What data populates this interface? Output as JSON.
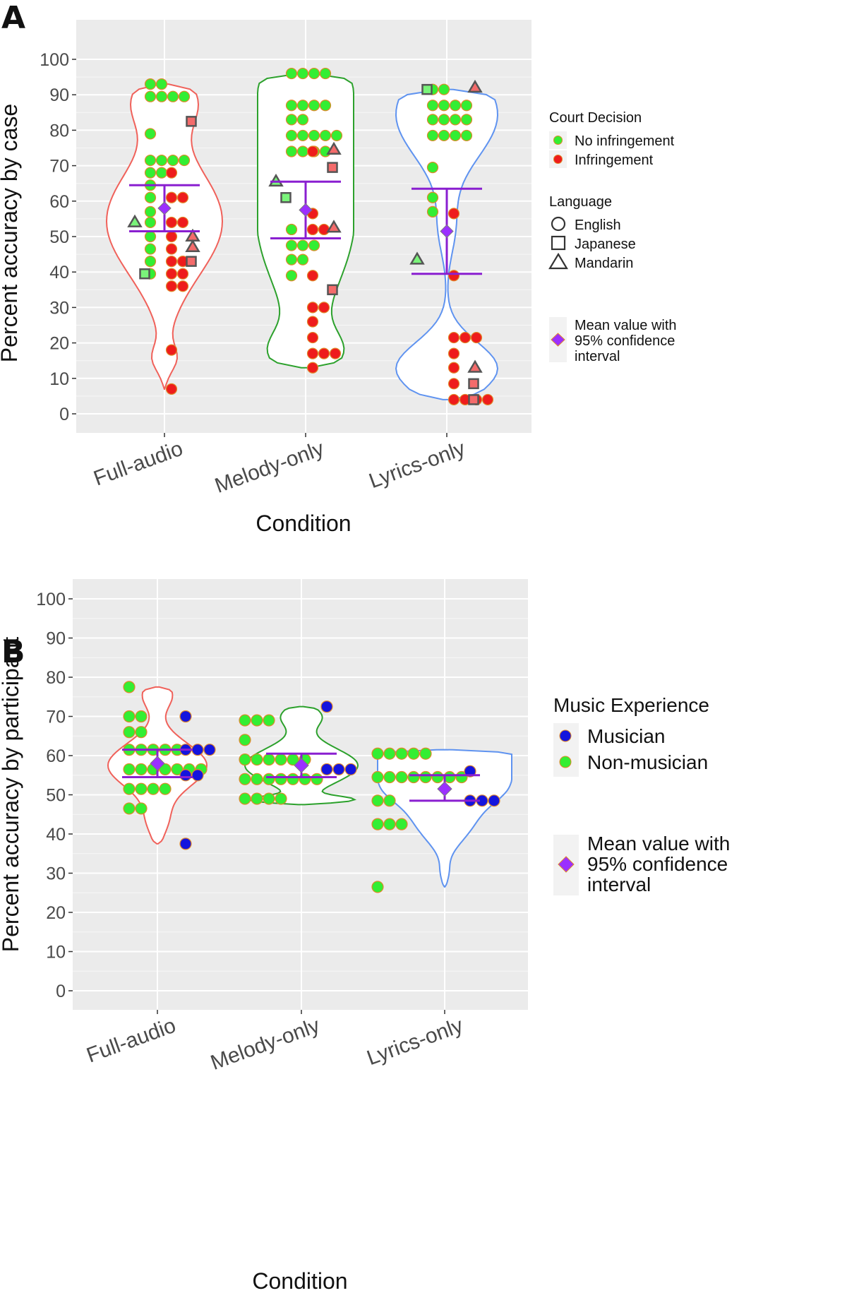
{
  "chart_data": [
    {
      "panel": "A",
      "type": "violin",
      "xlabel": "Condition",
      "ylabel": "Percent accuracy by case",
      "ylim": [
        0,
        100
      ],
      "yticks": [
        "0",
        "10",
        "20",
        "30",
        "40",
        "50",
        "60",
        "70",
        "80",
        "90",
        "100"
      ],
      "categories": [
        "Full-audio",
        "Melody-only",
        "Lyrics-only"
      ],
      "grid": true,
      "legend_position": "right",
      "legend": {
        "court_title": "Court Decision",
        "no_infringement": "No infringement",
        "infringement": "Infringement",
        "language_title": "Language",
        "english": "English",
        "japanese": "Japanese",
        "mandarin": "Mandarin",
        "mean_l1": "Mean value with",
        "mean_l2": "95% confidence",
        "mean_l3": "interval"
      },
      "colors": {
        "panel_bg": "#ebebeb",
        "grid": "#ffffff",
        "no_infringement": "#33ee33",
        "infringement": "#ee1c1c",
        "outline_full": "#f0615a",
        "outline_melody": "#2ca12c",
        "outline_lyrics": "#5f93f0",
        "mean": "#9b30ff",
        "ci": "#8a1fd0"
      },
      "summary": [
        {
          "category": "Full-audio",
          "mean": 58,
          "ci_low": 51.5,
          "ci_high": 64.5
        },
        {
          "category": "Melody-only",
          "mean": 57.5,
          "ci_low": 49.5,
          "ci_high": 65.5
        },
        {
          "category": "Lyrics-only",
          "mean": 51.5,
          "ci_low": 39.5,
          "ci_high": 63.5
        }
      ],
      "violin_range": [
        {
          "category": "Full-audio",
          "min": 7,
          "max": 93
        },
        {
          "category": "Melody-only",
          "min": 13,
          "max": 96
        },
        {
          "category": "Lyrics-only",
          "min": 4,
          "max": 91.5
        }
      ],
      "series": [
        {
          "group": "No infringement",
          "shape": "circle",
          "points": [
            [
              "Full-audio",
              93
            ],
            [
              "Full-audio",
              93
            ],
            [
              "Full-audio",
              89.5
            ],
            [
              "Full-audio",
              89.5
            ],
            [
              "Full-audio",
              89.5
            ],
            [
              "Full-audio",
              89.5
            ],
            [
              "Full-audio",
              79
            ],
            [
              "Full-audio",
              71.5
            ],
            [
              "Full-audio",
              71.5
            ],
            [
              "Full-audio",
              71.5
            ],
            [
              "Full-audio",
              71.5
            ],
            [
              "Full-audio",
              68
            ],
            [
              "Full-audio",
              68
            ],
            [
              "Full-audio",
              64.5
            ],
            [
              "Full-audio",
              61
            ],
            [
              "Full-audio",
              57
            ],
            [
              "Full-audio",
              54
            ],
            [
              "Full-audio",
              50
            ],
            [
              "Full-audio",
              46.5
            ],
            [
              "Full-audio",
              43
            ],
            [
              "Full-audio",
              39.5
            ],
            [
              "Melody-only",
              96
            ],
            [
              "Melody-only",
              96
            ],
            [
              "Melody-only",
              96
            ],
            [
              "Melody-only",
              96
            ],
            [
              "Melody-only",
              87
            ],
            [
              "Melody-only",
              87
            ],
            [
              "Melody-only",
              87
            ],
            [
              "Melody-only",
              87
            ],
            [
              "Melody-only",
              83
            ],
            [
              "Melody-only",
              83
            ],
            [
              "Melody-only",
              78.5
            ],
            [
              "Melody-only",
              78.5
            ],
            [
              "Melody-only",
              78.5
            ],
            [
              "Melody-only",
              78.5
            ],
            [
              "Melody-only",
              78.5
            ],
            [
              "Melody-only",
              74
            ],
            [
              "Melody-only",
              74
            ],
            [
              "Melody-only",
              74
            ],
            [
              "Melody-only",
              74
            ],
            [
              "Melody-only",
              52
            ],
            [
              "Melody-only",
              47.5
            ],
            [
              "Melody-only",
              47.5
            ],
            [
              "Melody-only",
              47.5
            ],
            [
              "Melody-only",
              43.5
            ],
            [
              "Melody-only",
              43.5
            ],
            [
              "Melody-only",
              39
            ],
            [
              "Lyrics-only",
              91.5
            ],
            [
              "Lyrics-only",
              91.5
            ],
            [
              "Lyrics-only",
              87
            ],
            [
              "Lyrics-only",
              87
            ],
            [
              "Lyrics-only",
              87
            ],
            [
              "Lyrics-only",
              87
            ],
            [
              "Lyrics-only",
              83
            ],
            [
              "Lyrics-only",
              83
            ],
            [
              "Lyrics-only",
              83
            ],
            [
              "Lyrics-only",
              83
            ],
            [
              "Lyrics-only",
              78.5
            ],
            [
              "Lyrics-only",
              78.5
            ],
            [
              "Lyrics-only",
              78.5
            ],
            [
              "Lyrics-only",
              78.5
            ],
            [
              "Lyrics-only",
              69.5
            ],
            [
              "Lyrics-only",
              61
            ],
            [
              "Lyrics-only",
              57
            ]
          ]
        },
        {
          "group": "Infringement",
          "shape": "circle",
          "points": [
            [
              "Full-audio",
              68
            ],
            [
              "Full-audio",
              61
            ],
            [
              "Full-audio",
              61
            ],
            [
              "Full-audio",
              54
            ],
            [
              "Full-audio",
              54
            ],
            [
              "Full-audio",
              50
            ],
            [
              "Full-audio",
              46.5
            ],
            [
              "Full-audio",
              43
            ],
            [
              "Full-audio",
              43
            ],
            [
              "Full-audio",
              39.5
            ],
            [
              "Full-audio",
              39.5
            ],
            [
              "Full-audio",
              36
            ],
            [
              "Full-audio",
              36
            ],
            [
              "Full-audio",
              18
            ],
            [
              "Full-audio",
              7
            ],
            [
              "Melody-only",
              74
            ],
            [
              "Melody-only",
              56.5
            ],
            [
              "Melody-only",
              52
            ],
            [
              "Melody-only",
              52
            ],
            [
              "Melody-only",
              39
            ],
            [
              "Melody-only",
              30
            ],
            [
              "Melody-only",
              30
            ],
            [
              "Melody-only",
              26
            ],
            [
              "Melody-only",
              21.5
            ],
            [
              "Melody-only",
              17
            ],
            [
              "Melody-only",
              17
            ],
            [
              "Melody-only",
              17
            ],
            [
              "Melody-only",
              13
            ],
            [
              "Lyrics-only",
              56.5
            ],
            [
              "Lyrics-only",
              39
            ],
            [
              "Lyrics-only",
              21.5
            ],
            [
              "Lyrics-only",
              21.5
            ],
            [
              "Lyrics-only",
              21.5
            ],
            [
              "Lyrics-only",
              17
            ],
            [
              "Lyrics-only",
              13
            ],
            [
              "Lyrics-only",
              8.5
            ],
            [
              "Lyrics-only",
              4
            ],
            [
              "Lyrics-only",
              4
            ],
            [
              "Lyrics-only",
              4
            ],
            [
              "Lyrics-only",
              4
            ]
          ]
        },
        {
          "group": "No infringement",
          "shape": "square",
          "points": [
            [
              "Full-audio",
              39.5
            ],
            [
              "Melody-only",
              61
            ],
            [
              "Lyrics-only",
              91.5
            ]
          ]
        },
        {
          "group": "Infringement",
          "shape": "square",
          "points": [
            [
              "Full-audio",
              82.5
            ],
            [
              "Full-audio",
              43
            ],
            [
              "Melody-only",
              69.5
            ],
            [
              "Melody-only",
              35
            ],
            [
              "Lyrics-only",
              8.5
            ],
            [
              "Lyrics-only",
              4
            ]
          ]
        },
        {
          "group": "No infringement",
          "shape": "triangle",
          "points": [
            [
              "Full-audio",
              54
            ],
            [
              "Melody-only",
              65.5
            ],
            [
              "Lyrics-only",
              43.5
            ]
          ]
        },
        {
          "group": "Infringement",
          "shape": "triangle",
          "points": [
            [
              "Full-audio",
              50
            ],
            [
              "Full-audio",
              47
            ],
            [
              "Melody-only",
              74.5
            ],
            [
              "Melody-only",
              52.5
            ],
            [
              "Lyrics-only",
              92
            ],
            [
              "Lyrics-only",
              13
            ]
          ]
        }
      ]
    },
    {
      "panel": "B",
      "type": "violin",
      "xlabel": "Condition",
      "ylabel": "Percent accuracy by participant",
      "ylim": [
        0,
        100
      ],
      "yticks": [
        "0",
        "10",
        "20",
        "30",
        "40",
        "50",
        "60",
        "70",
        "80",
        "90",
        "100"
      ],
      "categories": [
        "Full-audio",
        "Melody-only",
        "Lyrics-only"
      ],
      "grid": true,
      "legend_position": "right",
      "legend": {
        "title": "Music Experience",
        "musician": "Musician",
        "non_musician": "Non-musician",
        "mean_l1": "Mean value with",
        "mean_l2": "95% confidence",
        "mean_l3": "interval"
      },
      "colors": {
        "panel_bg": "#ebebeb",
        "grid": "#ffffff",
        "musician": "#1414dd",
        "non_musician": "#33ee33",
        "outline_full": "#f0615a",
        "outline_melody": "#2ca12c",
        "outline_lyrics": "#5f93f0",
        "mean": "#9b30ff",
        "ci": "#8a1fd0"
      },
      "summary": [
        {
          "category": "Full-audio",
          "mean": 58,
          "ci_low": 54.5,
          "ci_high": 61.5
        },
        {
          "category": "Melody-only",
          "mean": 57.5,
          "ci_low": 54.5,
          "ci_high": 60.5
        },
        {
          "category": "Lyrics-only",
          "mean": 51.5,
          "ci_low": 48.5,
          "ci_high": 55
        }
      ],
      "violin_range": [
        {
          "category": "Full-audio",
          "min": 37.5,
          "max": 77.5
        },
        {
          "category": "Melody-only",
          "min": 47.5,
          "max": 72.5
        },
        {
          "category": "Lyrics-only",
          "min": 26.5,
          "max": 61.5
        }
      ],
      "series": [
        {
          "name": "Non-musician",
          "points": [
            [
              "Full-audio",
              77.5
            ],
            [
              "Full-audio",
              70
            ],
            [
              "Full-audio",
              70
            ],
            [
              "Full-audio",
              66
            ],
            [
              "Full-audio",
              66
            ],
            [
              "Full-audio",
              61.5
            ],
            [
              "Full-audio",
              61.5
            ],
            [
              "Full-audio",
              61.5
            ],
            [
              "Full-audio",
              61.5
            ],
            [
              "Full-audio",
              61.5
            ],
            [
              "Full-audio",
              56.5
            ],
            [
              "Full-audio",
              56.5
            ],
            [
              "Full-audio",
              56.5
            ],
            [
              "Full-audio",
              56.5
            ],
            [
              "Full-audio",
              56.5
            ],
            [
              "Full-audio",
              56.5
            ],
            [
              "Full-audio",
              56.5
            ],
            [
              "Full-audio",
              51.5
            ],
            [
              "Full-audio",
              51.5
            ],
            [
              "Full-audio",
              51.5
            ],
            [
              "Full-audio",
              51.5
            ],
            [
              "Full-audio",
              46.5
            ],
            [
              "Full-audio",
              46.5
            ],
            [
              "Melody-only",
              69
            ],
            [
              "Melody-only",
              69
            ],
            [
              "Melody-only",
              69
            ],
            [
              "Melody-only",
              64
            ],
            [
              "Melody-only",
              59
            ],
            [
              "Melody-only",
              59
            ],
            [
              "Melody-only",
              59
            ],
            [
              "Melody-only",
              59
            ],
            [
              "Melody-only",
              59
            ],
            [
              "Melody-only",
              59
            ],
            [
              "Melody-only",
              54
            ],
            [
              "Melody-only",
              54
            ],
            [
              "Melody-only",
              54
            ],
            [
              "Melody-only",
              54
            ],
            [
              "Melody-only",
              54
            ],
            [
              "Melody-only",
              54
            ],
            [
              "Melody-only",
              54
            ],
            [
              "Melody-only",
              49
            ],
            [
              "Melody-only",
              49
            ],
            [
              "Melody-only",
              49
            ],
            [
              "Melody-only",
              49
            ],
            [
              "Lyrics-only",
              60.5
            ],
            [
              "Lyrics-only",
              60.5
            ],
            [
              "Lyrics-only",
              60.5
            ],
            [
              "Lyrics-only",
              60.5
            ],
            [
              "Lyrics-only",
              60.5
            ],
            [
              "Lyrics-only",
              54.5
            ],
            [
              "Lyrics-only",
              54.5
            ],
            [
              "Lyrics-only",
              54.5
            ],
            [
              "Lyrics-only",
              54.5
            ],
            [
              "Lyrics-only",
              54.5
            ],
            [
              "Lyrics-only",
              54.5
            ],
            [
              "Lyrics-only",
              54.5
            ],
            [
              "Lyrics-only",
              54.5
            ],
            [
              "Lyrics-only",
              48.5
            ],
            [
              "Lyrics-only",
              48.5
            ],
            [
              "Lyrics-only",
              42.5
            ],
            [
              "Lyrics-only",
              42.5
            ],
            [
              "Lyrics-only",
              42.5
            ],
            [
              "Lyrics-only",
              26.5
            ]
          ]
        },
        {
          "name": "Musician",
          "points": [
            [
              "Full-audio",
              70
            ],
            [
              "Full-audio",
              61.5
            ],
            [
              "Full-audio",
              61.5
            ],
            [
              "Full-audio",
              61.5
            ],
            [
              "Full-audio",
              55
            ],
            [
              "Full-audio",
              55
            ],
            [
              "Full-audio",
              37.5
            ],
            [
              "Melody-only",
              72.5
            ],
            [
              "Melody-only",
              56.5
            ],
            [
              "Melody-only",
              56.5
            ],
            [
              "Melody-only",
              56.5
            ],
            [
              "Lyrics-only",
              56
            ],
            [
              "Lyrics-only",
              48.5
            ],
            [
              "Lyrics-only",
              48.5
            ],
            [
              "Lyrics-only",
              48.5
            ]
          ]
        }
      ]
    }
  ]
}
